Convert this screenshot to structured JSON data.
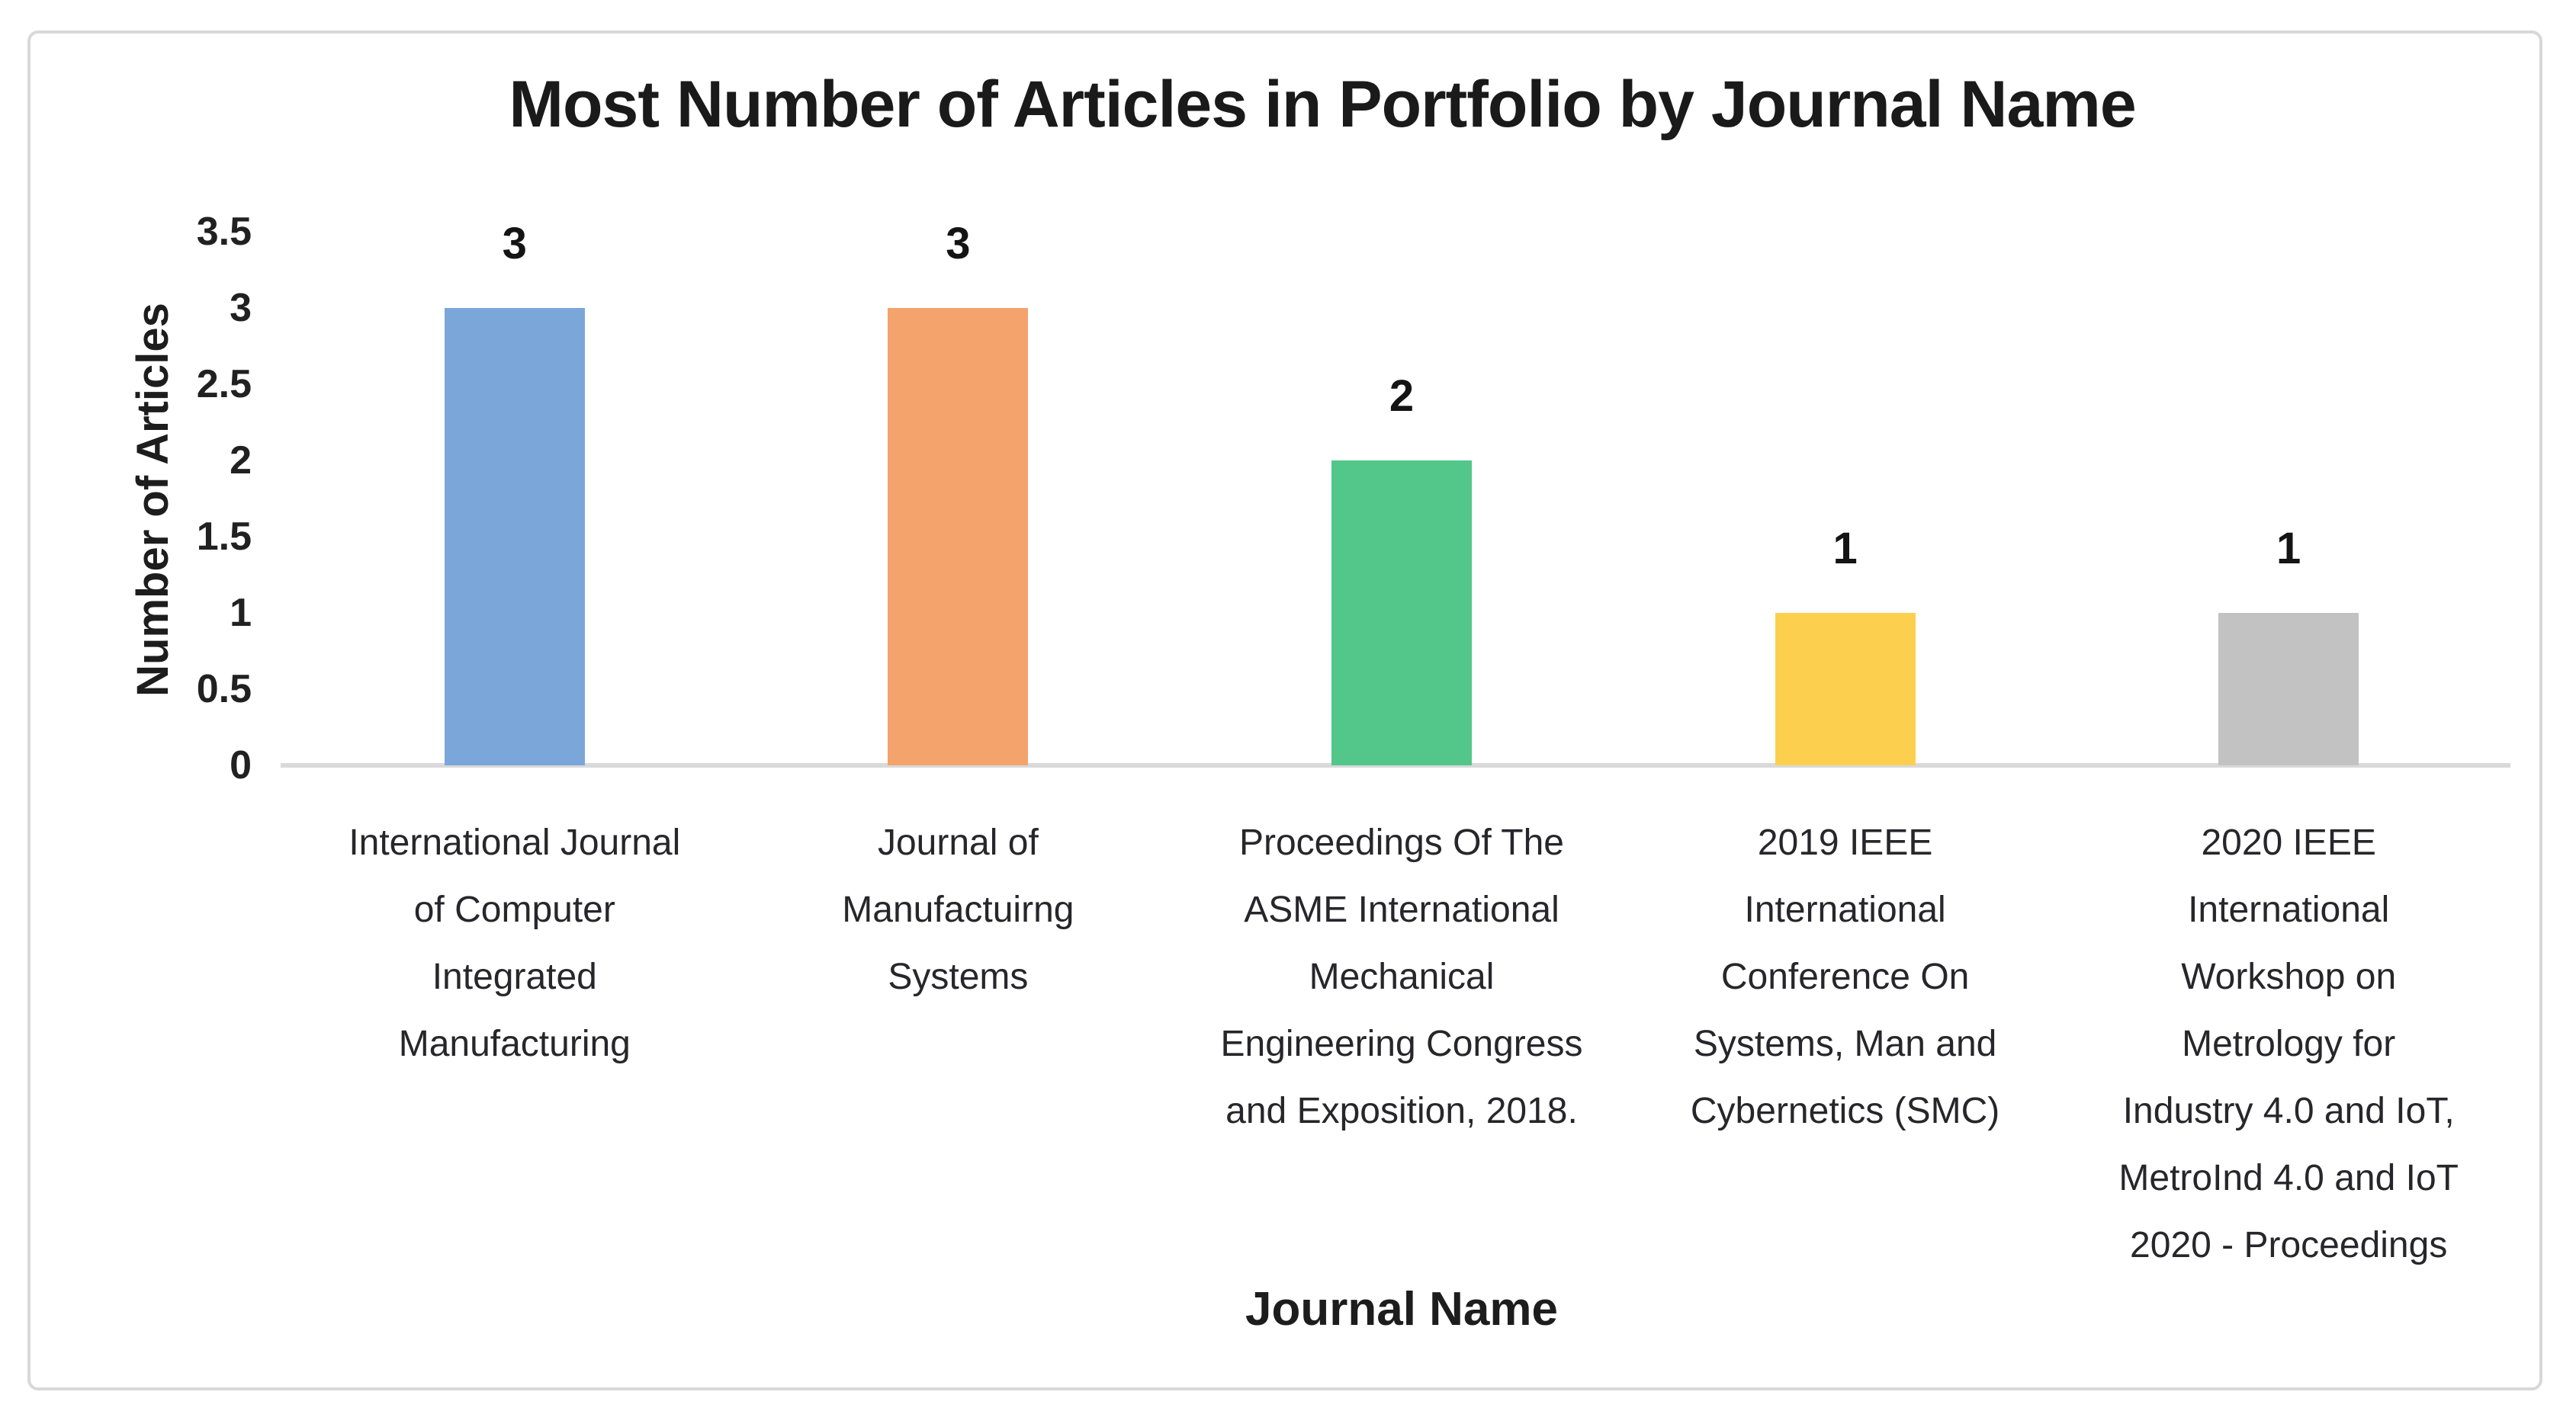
{
  "chart_data": {
    "type": "bar",
    "title": "Most Number of Articles in Portfolio by Journal Name",
    "xlabel": "Journal Name",
    "ylabel": "Number of Articles",
    "categories": [
      "International Journal of Computer Integrated Manufacturing",
      "Journal of Manufactuirng Systems",
      "Proceedings Of The ASME International Mechanical Engineering Congress and Exposition, 2018.",
      "2019 IEEE International Conference On Systems, Man and Cybernetics (SMC)",
      "2020 IEEE International Workshop on Metrology for Industry 4.0 and IoT, MetroInd 4.0 and IoT 2020 - Proceedings"
    ],
    "category_lines": [
      [
        "International Journal",
        "of Computer",
        "Integrated",
        "Manufacturing"
      ],
      [
        "Journal of",
        "Manufactuirng",
        "Systems"
      ],
      [
        "Proceedings Of The",
        "ASME International",
        "Mechanical",
        "Engineering Congress",
        "and Exposition, 2018."
      ],
      [
        "2019 IEEE",
        "International",
        "Conference On",
        "Systems, Man and",
        "Cybernetics (SMC)"
      ],
      [
        "2020 IEEE",
        "International",
        "Workshop on",
        "Metrology for",
        "Industry 4.0 and IoT,",
        "MetroInd 4.0 and IoT",
        "2020 - Proceedings"
      ]
    ],
    "values": [
      3,
      3,
      2,
      1,
      1
    ],
    "data_labels": [
      "3",
      "3",
      "2",
      "1",
      "1"
    ],
    "bar_colors": [
      "#7aa6d9",
      "#f4a36c",
      "#53c789",
      "#fcd04e",
      "#c2c2c2"
    ],
    "yticks": [
      {
        "value": 3.5,
        "label": "3.5"
      },
      {
        "value": 3,
        "label": "3"
      },
      {
        "value": 2.5,
        "label": "2.5"
      },
      {
        "value": 2,
        "label": "2"
      },
      {
        "value": 1.5,
        "label": "1.5"
      },
      {
        "value": 1,
        "label": "1"
      },
      {
        "value": 0.5,
        "label": "0.5"
      },
      {
        "value": 0,
        "label": "0"
      }
    ],
    "ylim": [
      0,
      3.5
    ],
    "grid": false,
    "legend": "none",
    "axis_line_color": "#d9d9d9",
    "card_border_color": "#d8d8d8",
    "text_color": "#1a1a1a"
  }
}
